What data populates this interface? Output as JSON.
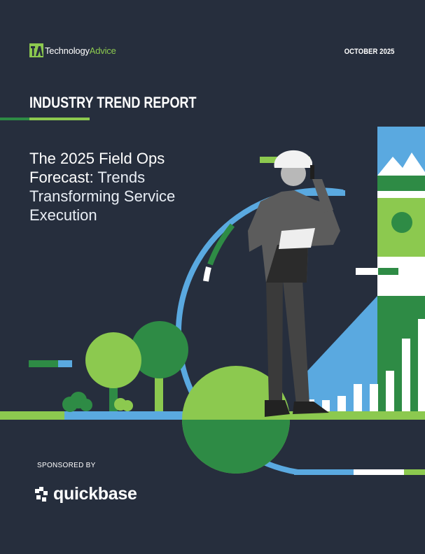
{
  "header": {
    "logo": {
      "prefix": "Technology",
      "suffix": "Advice",
      "icon": "ta-monogram-icon"
    },
    "date": "OCTOBER 2025"
  },
  "cover": {
    "report_type": "INDUSTRY TREND REPORT",
    "title_strong": "The 2025 Field Ops Forecast:",
    "title_light": "Trends Transforming Service Execution"
  },
  "sponsor": {
    "label": "SPONSORED BY",
    "name": "quickbase",
    "icon": "quickbase-logo-icon"
  },
  "colors": {
    "background": "#262e3d",
    "green_light": "#8cc94f",
    "green_dark": "#2e8b45",
    "blue": "#5aa9e0",
    "white": "#ffffff"
  }
}
